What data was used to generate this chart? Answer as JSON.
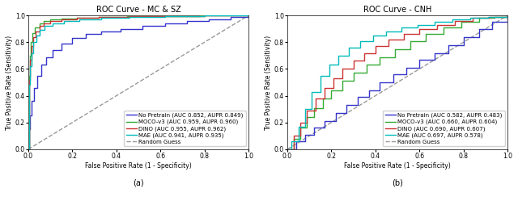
{
  "left_title": "ROC Curve - MC & SZ",
  "right_title": "ROC Curve - CNH",
  "xlabel": "False Positive Rate (1 - Specificity)",
  "ylabel": "True Positive Rate (Sensitivity)",
  "xlim": [
    0.0,
    1.0
  ],
  "ylim": [
    0.0,
    1.0
  ],
  "xticks": [
    0.0,
    0.2,
    0.4,
    0.6,
    0.8,
    1.0
  ],
  "yticks": [
    0.0,
    0.2,
    0.4,
    0.6,
    0.8,
    1.0
  ],
  "subplot_labels": [
    "(a)",
    "(b)"
  ],
  "colors": {
    "no_pretrain": "#3333cc",
    "moco": "#33aa33",
    "dino": "#cc3333",
    "mae": "#00bbbb",
    "random": "#999999"
  },
  "left_legend": [
    "No Pretrain (AUC 0.852, AUPR 0.849)",
    "MOCO-v3 (AUC 0.959, AUPR 0.960)",
    "DINO (AUC 0.955, AUPR 0.962)",
    "MAE (AUC 0.941, AUPR 0.935)",
    "Random Guess"
  ],
  "right_legend": [
    "No Pretrain (AUC 0.582, AUPR 0.483)",
    "MOCO-v3 (AUC 0.660, AUPR 0.604)",
    "DINO (AUC 0.690, AUPR 0.607)",
    "MAE (AUC 0.697, AUPR 0.578)",
    "Random Guess"
  ],
  "background_color": "#ffffff",
  "lw": 1.0,
  "fontsize_title": 7,
  "fontsize_legend": 5.0,
  "fontsize_axis": 5.5,
  "fontsize_tick": 5.5,
  "fontsize_label": 7
}
